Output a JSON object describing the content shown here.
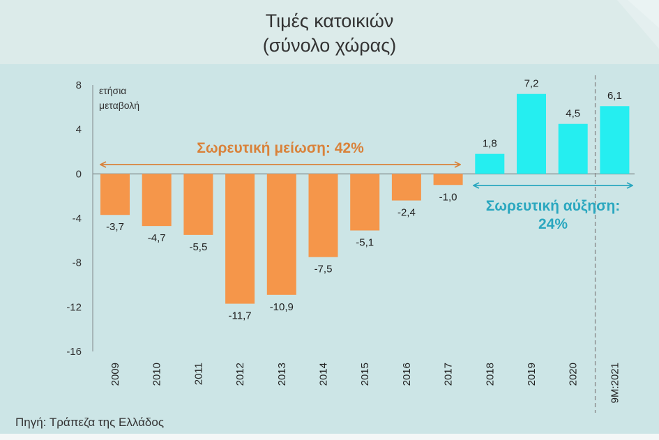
{
  "header": {
    "title_line1": "Τιμές κατοικιών",
    "title_line2": "(σύνολο χώρας)"
  },
  "source": "Πηγή: Τράπεζα της Ελλάδος",
  "colors": {
    "decline": "#f5964a",
    "increase": "#25eef0",
    "decline_text": "#d9823a",
    "increase_text": "#2aa7bf"
  },
  "annotations": {
    "decline": "Σωρευτική μείωση: 42%",
    "increase_line1": "Σωρευτική αύξηση:",
    "increase_line2": "24%"
  },
  "chart_data": {
    "type": "bar",
    "ylabel_line1": "ετήσια",
    "ylabel_line2": "μεταβολή",
    "categories": [
      "2009",
      "2010",
      "2011",
      "2012",
      "2013",
      "2014",
      "2015",
      "2016",
      "2017",
      "2018",
      "2019",
      "2020",
      "9M:2021"
    ],
    "values": [
      -3.7,
      -4.7,
      -5.5,
      -11.7,
      -10.9,
      -7.5,
      -5.1,
      -2.4,
      -1.0,
      1.8,
      7.2,
      4.5,
      6.1
    ],
    "value_labels": [
      "-3,7",
      "-4,7",
      "-5,5",
      "-11,7",
      "-10,9",
      "-7,5",
      "-5,1",
      "-2,4",
      "-1,0",
      "1,8",
      "7,2",
      "4,5",
      "6,1"
    ],
    "yticks": [
      8,
      4,
      0,
      -4,
      -8,
      -12,
      -16
    ],
    "ylim": [
      -16,
      8
    ],
    "grid": false,
    "legend": "none"
  }
}
